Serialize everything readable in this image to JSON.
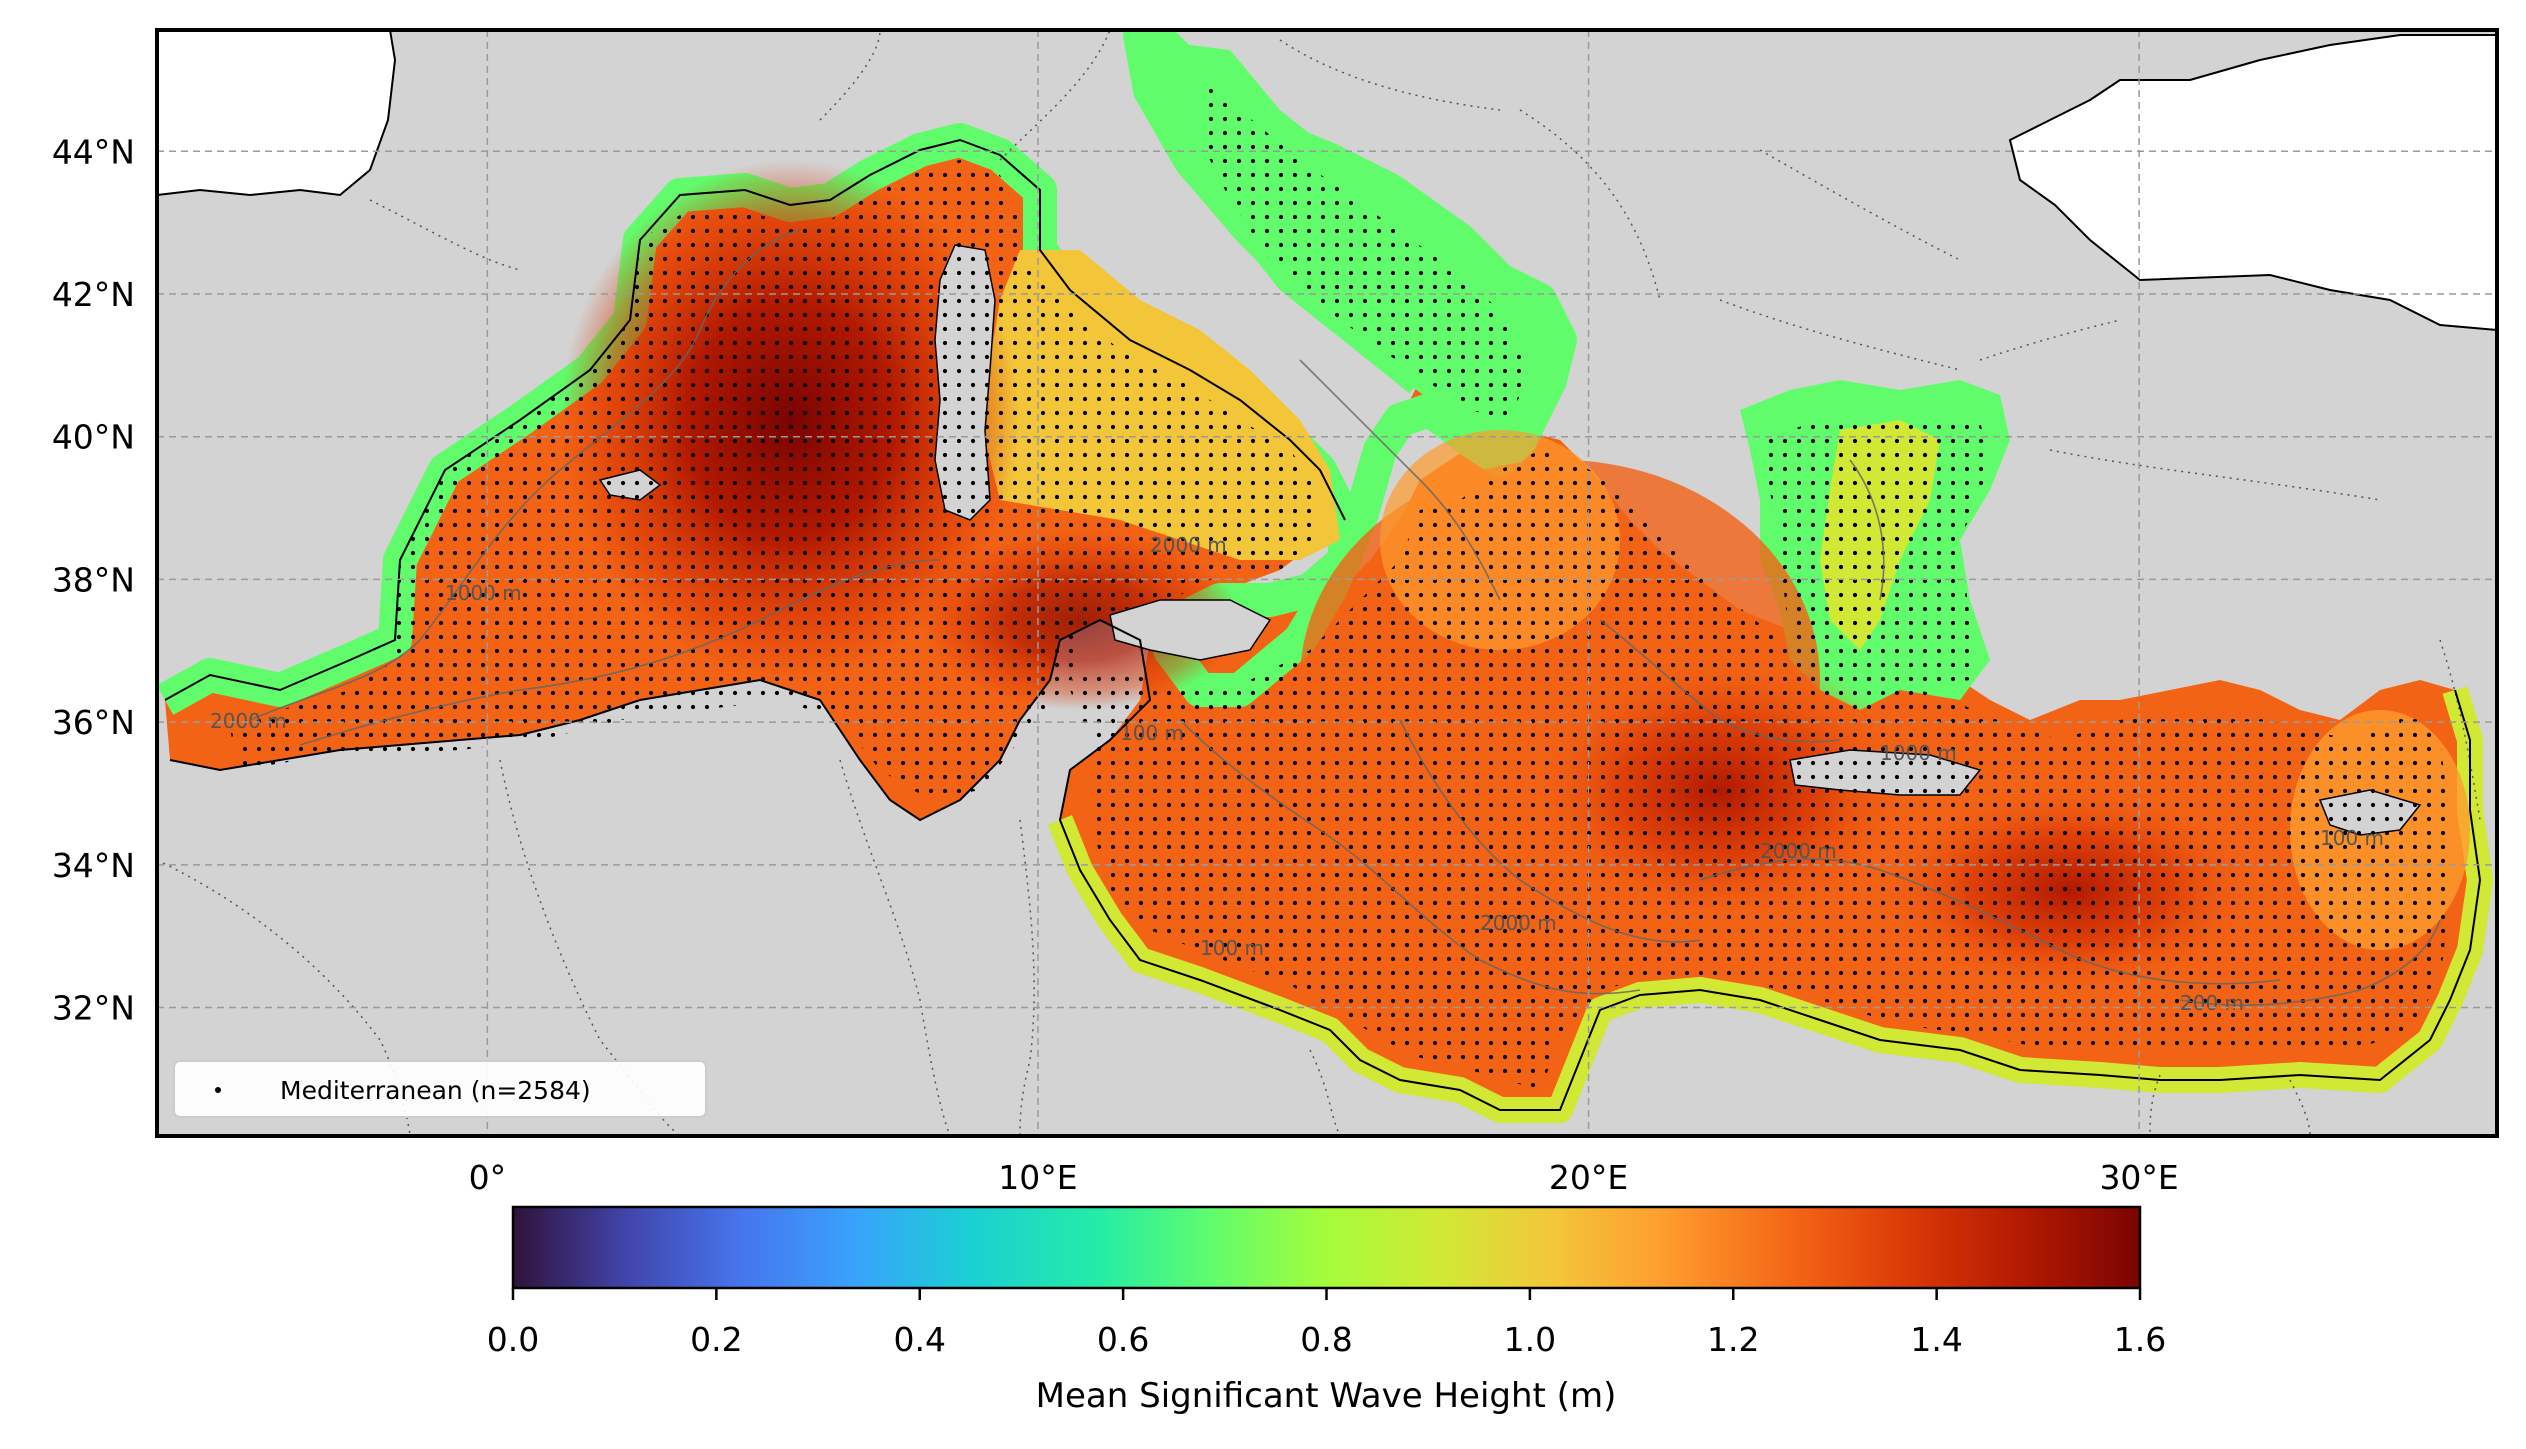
{
  "map": {
    "region": "Mediterranean Sea",
    "variable": "Mean Significant Wave Height",
    "extent_lon": [
      -6,
      36.5
    ],
    "extent_lat": [
      30.2,
      45.7
    ],
    "lon_ticks": [
      {
        "value": 0,
        "label": "0°"
      },
      {
        "value": 10,
        "label": "10°E"
      },
      {
        "value": 20,
        "label": "20°E"
      },
      {
        "value": 30,
        "label": "30°E"
      }
    ],
    "lat_ticks": [
      {
        "value": 32,
        "label": "32°N"
      },
      {
        "value": 34,
        "label": "34°N"
      },
      {
        "value": 36,
        "label": "36°N"
      },
      {
        "value": 38,
        "label": "38°N"
      },
      {
        "value": 40,
        "label": "40°N"
      },
      {
        "value": 42,
        "label": "42°N"
      },
      {
        "value": 44,
        "label": "44°N"
      }
    ],
    "gridlines": true,
    "land_color": "#d3d3d3",
    "outer_land_color": "#ffffff",
    "sample_points": {
      "count": 2584,
      "color": "#000000"
    },
    "contour_labels": [
      "2000 m",
      "1000 m",
      "2000 m",
      "100 m",
      "2000 m",
      "2000 m",
      "1000 m",
      "200 m",
      "100 m",
      "100 m"
    ],
    "wave_maxima": [
      {
        "lon": 5,
        "lat": 41,
        "value": 1.55
      },
      {
        "lon": 22,
        "lat": 35,
        "value": 1.35
      },
      {
        "lon": 27,
        "lat": 33.8,
        "value": 1.4
      }
    ]
  },
  "legend": {
    "label": "Mediterranean (n=2584)",
    "position": "lower-left"
  },
  "colorbar": {
    "title": "Mean Significant Wave Height (m)",
    "colormap": "turbo",
    "vmin": 0.0,
    "vmax": 1.6,
    "ticks": [
      "0.0",
      "0.2",
      "0.4",
      "0.6",
      "0.8",
      "1.0",
      "1.2",
      "1.4",
      "1.6"
    ],
    "colors": [
      "#30123b",
      "#4145ab",
      "#4675ed",
      "#39a2fc",
      "#1bcfd4",
      "#24eca6",
      "#61fc6c",
      "#a4fc3b",
      "#d1e834",
      "#f3c63a",
      "#fe9b2d",
      "#f36315",
      "#d93806",
      "#b11901",
      "#7a0402"
    ]
  }
}
